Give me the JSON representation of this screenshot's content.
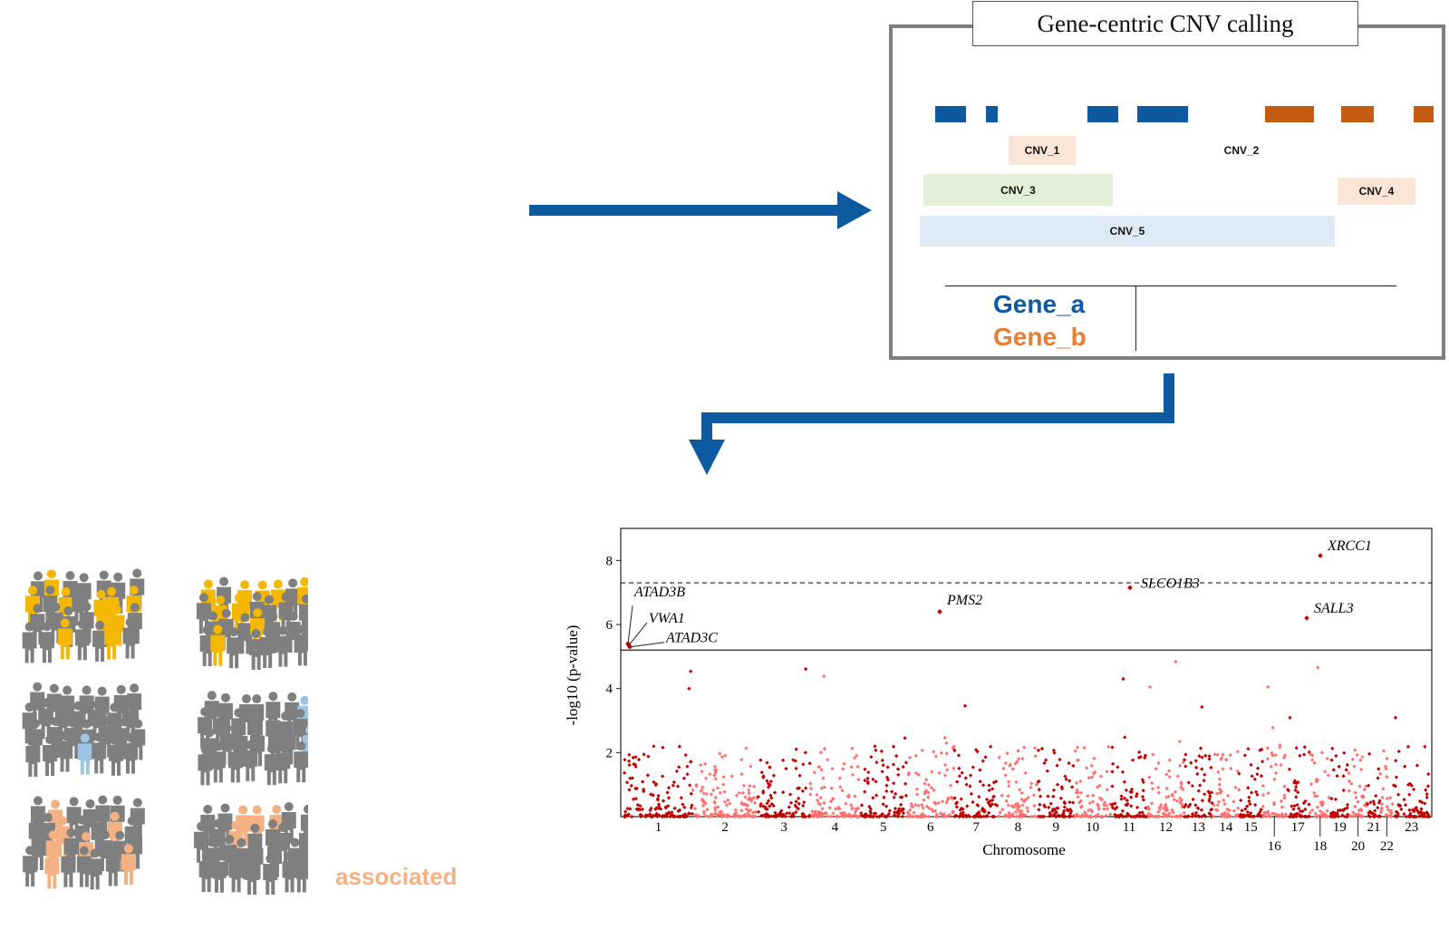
{
  "cnv_panel": {
    "title": "Gene-centric CNV calling",
    "cnvs": [
      {
        "label": "CNV_1",
        "color": "#fbe5d6"
      },
      {
        "label": "CNV_2",
        "color": "#ffffff"
      },
      {
        "label": "CNV_3",
        "color": "#e2f0d9"
      },
      {
        "label": "CNV_4",
        "color": "#fbe5d6"
      },
      {
        "label": "CNV_5",
        "color": "#deebf7"
      }
    ],
    "genes": [
      {
        "label": "Gene_a",
        "color": "#0e5aa0"
      },
      {
        "label": "Gene_b",
        "color": "#e87d33"
      }
    ],
    "exon_colors": {
      "gene_a": "#0e5aa0",
      "gene_b": "#c55a11"
    }
  },
  "people_panel": {
    "label": "associated",
    "label_color": "#f4b183",
    "colors": {
      "base": "#7f7f7f",
      "yellow": "#f5b800",
      "blue": "#9dc3e6",
      "orange": "#f4b183"
    }
  },
  "chart_data": {
    "type": "scatter",
    "xlabel": "Chromosome",
    "ylabel": "-log10 (p-value)",
    "ylim": [
      0,
      9
    ],
    "yticks": [
      2,
      4,
      6,
      8
    ],
    "xticks": [
      "1",
      "2",
      "3",
      "4",
      "5",
      "6",
      "7",
      "8",
      "9",
      "10",
      "11",
      "12",
      "13",
      "14",
      "15",
      "16",
      "17",
      "18",
      "19",
      "20",
      "21",
      "22",
      "23"
    ],
    "genome_wide_threshold": 7.3,
    "suggestive_threshold": 5.2,
    "point_colors": [
      "#c00000",
      "#ff6f6f"
    ],
    "labeled_points": [
      {
        "gene": "ATAD3B",
        "chromosome": "1",
        "y": 5.4
      },
      {
        "gene": "VWA1",
        "chromosome": "1",
        "y": 5.35
      },
      {
        "gene": "ATAD3C",
        "chromosome": "1",
        "y": 5.3
      },
      {
        "gene": "PMS2",
        "chromosome": "7",
        "y": 6.4
      },
      {
        "gene": "SLCO1B3",
        "chromosome": "12",
        "y": 7.15
      },
      {
        "gene": "XRCC1",
        "chromosome": "19",
        "y": 8.15
      },
      {
        "gene": "SALL3",
        "chromosome": "18",
        "y": 6.2
      }
    ]
  }
}
